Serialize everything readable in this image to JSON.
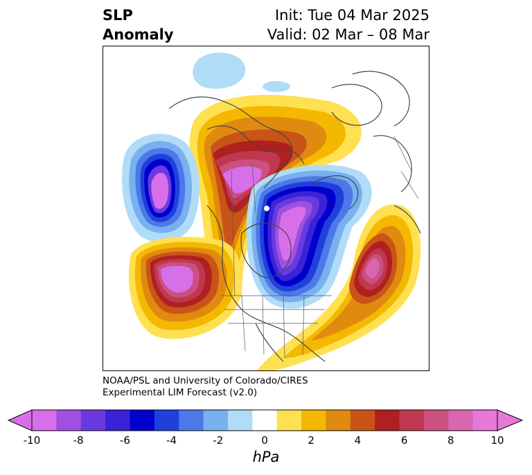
{
  "title": {
    "variable_line1": "SLP",
    "variable_line2": "Anomaly",
    "init": "Init: Tue 04 Mar 2025",
    "valid": "Valid: 02 Mar – 08 Mar"
  },
  "credit": {
    "line1": "NOAA/PSL and University of Colorado/CIRES",
    "line2": "Experimental LIM Forecast (v2.0)"
  },
  "colorbar": {
    "unit": "hPa",
    "tick_labels": [
      "-10",
      "-8",
      "-6",
      "-4",
      "-2",
      "0",
      "2",
      "4",
      "6",
      "8",
      "10"
    ],
    "min": -10,
    "max": 10,
    "levels": [
      -10,
      -9,
      -8,
      -7,
      -6,
      -5,
      -4,
      -3,
      -2,
      -1,
      1,
      2,
      3,
      4,
      5,
      6,
      7,
      8,
      9,
      10
    ],
    "colors": [
      "#d770e8",
      "#a050e0",
      "#6a3ae0",
      "#3a22d8",
      "#0000cc",
      "#2040dc",
      "#4c78e8",
      "#78b0f0",
      "#b0dcf8",
      "#ffffff",
      "#ffe050",
      "#f4b800",
      "#e08a10",
      "#c85418",
      "#b02020",
      "#c03850",
      "#cc5080",
      "#d866b0",
      "#e678d8"
    ],
    "extend": "both"
  }
}
